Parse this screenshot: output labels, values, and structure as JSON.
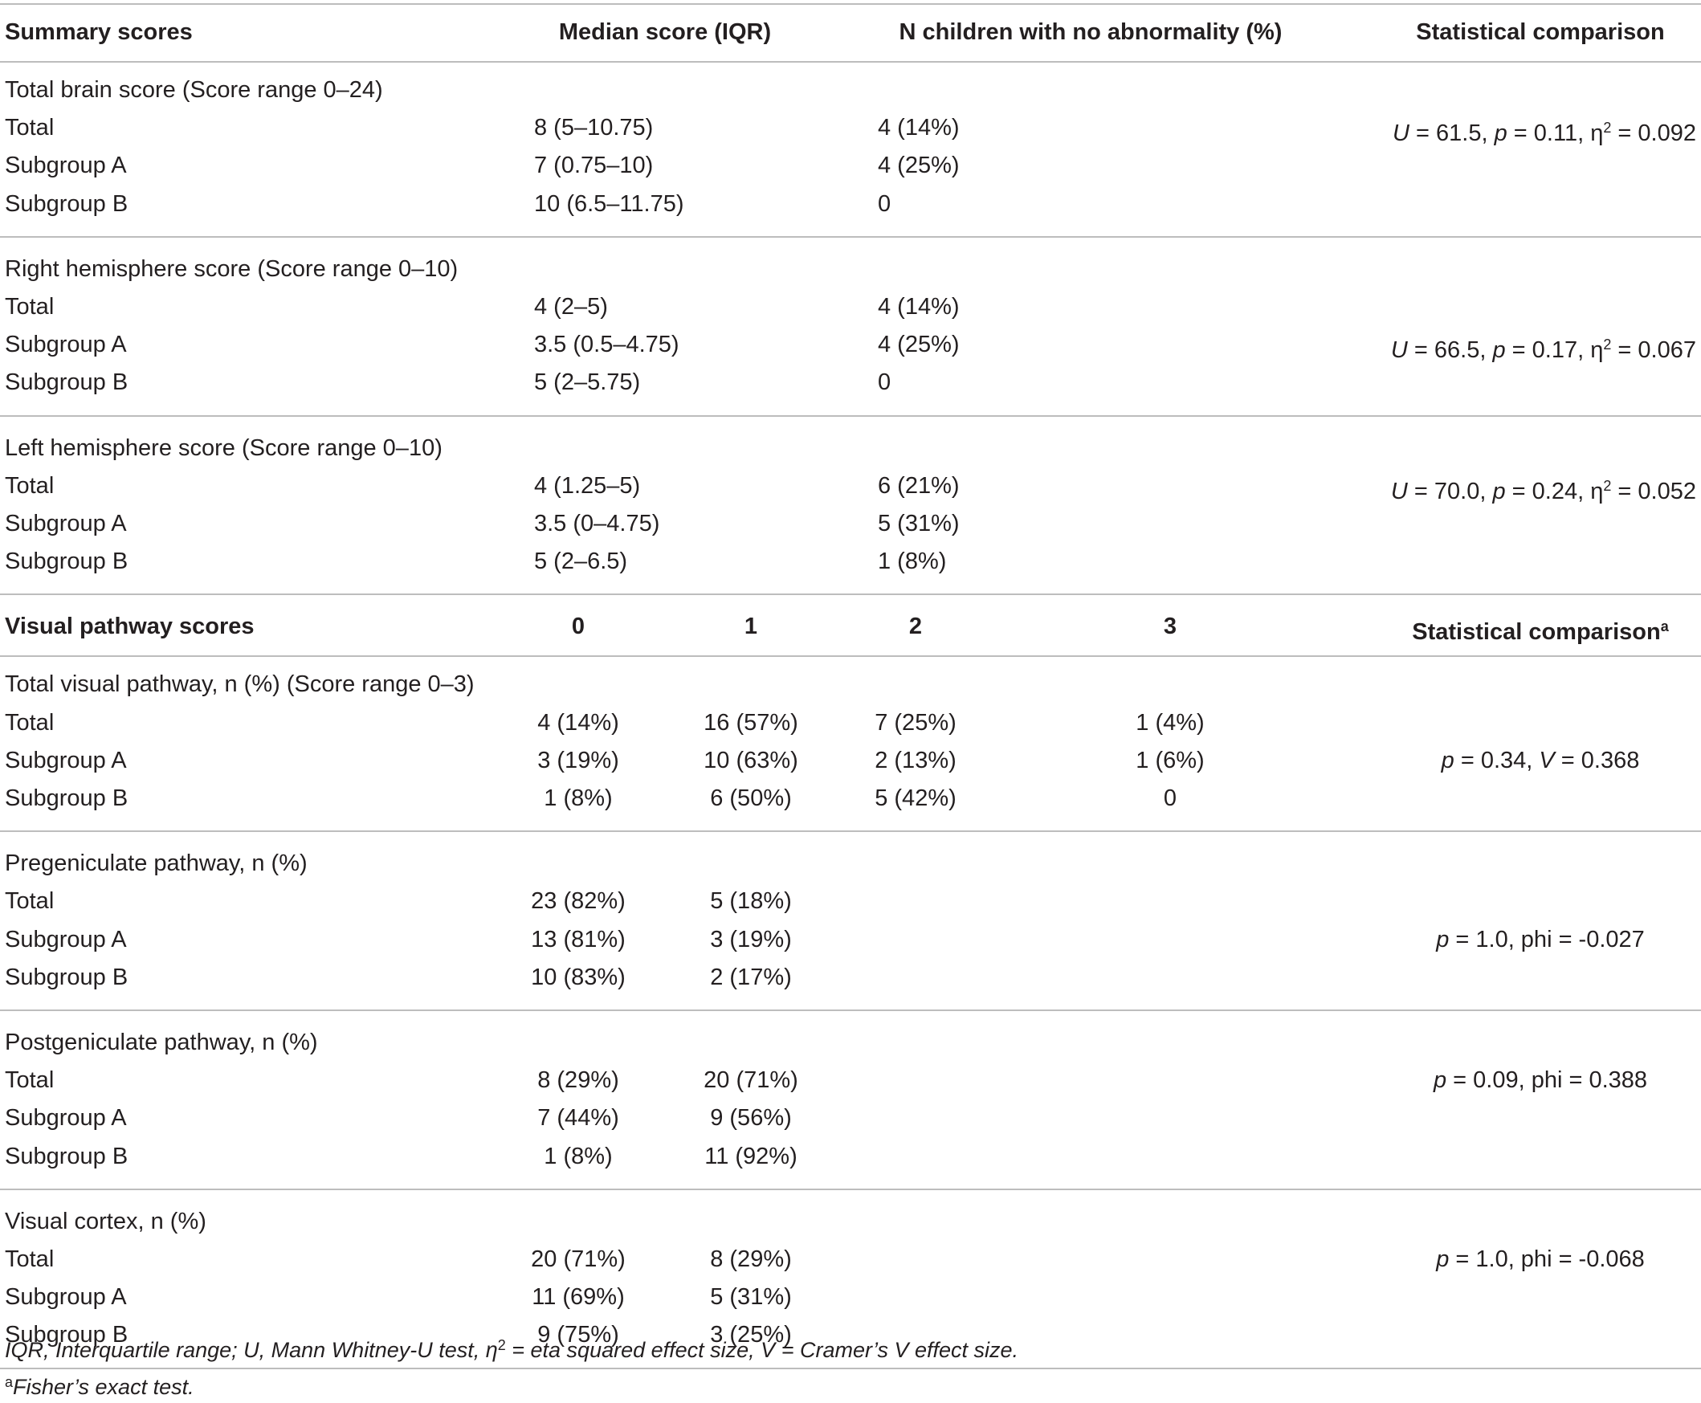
{
  "header1": {
    "col_summary": "Summary scores",
    "col_median": "Median score (IQR)",
    "col_no_abn": "N children with no abnormality (%)",
    "col_stat": "Statistical comparison"
  },
  "summary_groups": [
    {
      "title": "Total brain score (Score range 0–24)",
      "rows": [
        {
          "label": "Total",
          "median": "8 (5–10.75)",
          "no_abn": "4 (14%)"
        },
        {
          "label": "Subgroup A",
          "median": "7 (0.75–10)",
          "no_abn": "4 (25%)"
        },
        {
          "label": "Subgroup B",
          "median": "10 (6.5–11.75)",
          "no_abn": "0"
        }
      ],
      "stat": {
        "u": "U",
        "u_val": " = 61.5, ",
        "p": "p",
        "p_val": " = 0.11, ",
        "eta": "η",
        "eta_sup": "2",
        "eta_val": " = 0.092"
      }
    },
    {
      "title": "Right hemisphere score (Score range 0–10)",
      "rows": [
        {
          "label": "Total",
          "median": "4 (2–5)",
          "no_abn": "4 (14%)"
        },
        {
          "label": "Subgroup A",
          "median": "3.5 (0.5–4.75)",
          "no_abn": "4 (25%)"
        },
        {
          "label": "Subgroup B",
          "median": "5 (2–5.75)",
          "no_abn": "0"
        }
      ],
      "stat": {
        "u": "U",
        "u_val": " = 66.5, ",
        "p": "p",
        "p_val": " = 0.17, ",
        "eta": "η",
        "eta_sup": "2",
        "eta_val": " = 0.067"
      }
    },
    {
      "title": "Left hemisphere score (Score range 0–10)",
      "rows": [
        {
          "label": "Total",
          "median": "4 (1.25–5)",
          "no_abn": "6 (21%)"
        },
        {
          "label": "Subgroup A",
          "median": "3.5 (0–4.75)",
          "no_abn": "5 (31%)"
        },
        {
          "label": "Subgroup B",
          "median": "5 (2–6.5)",
          "no_abn": "1 (8%)"
        }
      ],
      "stat": {
        "u": "U",
        "u_val": " = 70.0, ",
        "p": "p",
        "p_val": " = 0.24, ",
        "eta": "η",
        "eta_sup": "2",
        "eta_val": " = 0.052"
      }
    }
  ],
  "header2": {
    "col_visual": "Visual pathway scores",
    "c0": "0",
    "c1": "1",
    "c2": "2",
    "c3": "3",
    "col_stat": "Statistical comparison",
    "col_stat_sup": "a"
  },
  "visual_groups": [
    {
      "title": "Total visual pathway, n (%) (Score range 0–3)",
      "rows": [
        {
          "label": "Total",
          "v0": "4 (14%)",
          "v1": "16 (57%)",
          "v2": "7 (25%)",
          "v3": "1 (4%)"
        },
        {
          "label": "Subgroup A",
          "v0": "3 (19%)",
          "v1": "10 (63%)",
          "v2": "2 (13%)",
          "v3": "1 (6%)"
        },
        {
          "label": "Subgroup B",
          "v0": "1 (8%)",
          "v1": "6 (50%)",
          "v2": "5 (42%)",
          "v3": "0"
        }
      ],
      "stat_row": 1,
      "stat": {
        "p": "p",
        "p_val": " = 0.34, ",
        "s": "V",
        "s_val": " = 0.368"
      }
    },
    {
      "title": "Pregeniculate pathway, n (%)",
      "rows": [
        {
          "label": "Total",
          "v0": "23 (82%)",
          "v1": "5 (18%)",
          "v2": "",
          "v3": ""
        },
        {
          "label": "Subgroup A",
          "v0": "13 (81%)",
          "v1": "3 (19%)",
          "v2": "",
          "v3": ""
        },
        {
          "label": "Subgroup B",
          "v0": "10 (83%)",
          "v1": "2 (17%)",
          "v2": "",
          "v3": ""
        }
      ],
      "stat_row": 1,
      "stat": {
        "p": "p",
        "p_val": " = 1.0, phi = -0.027",
        "s": "",
        "s_val": ""
      }
    },
    {
      "title": "Postgeniculate pathway, n (%)",
      "rows": [
        {
          "label": "Total",
          "v0": "8 (29%)",
          "v1": "20 (71%)",
          "v2": "",
          "v3": ""
        },
        {
          "label": "Subgroup A",
          "v0": "7 (44%)",
          "v1": "9 (56%)",
          "v2": "",
          "v3": ""
        },
        {
          "label": "Subgroup B",
          "v0": "1 (8%)",
          "v1": "11 (92%)",
          "v2": "",
          "v3": ""
        }
      ],
      "stat_row": 0,
      "stat": {
        "p": "p",
        "p_val": " = 0.09, phi = 0.388",
        "s": "",
        "s_val": ""
      }
    },
    {
      "title": "Visual cortex, n (%)",
      "rows": [
        {
          "label": "Total",
          "v0": "20 (71%)",
          "v1": "8 (29%)",
          "v2": "",
          "v3": ""
        },
        {
          "label": "Subgroup A",
          "v0": "11 (69%)",
          "v1": "5 (31%)",
          "v2": "",
          "v3": ""
        },
        {
          "label": "Subgroup B",
          "v0": "9 (75%)",
          "v1": "3 (25%)",
          "v2": "",
          "v3": ""
        }
      ],
      "stat_row": 0,
      "stat": {
        "p": "p",
        "p_val": " = 1.0, phi = -0.068",
        "s": "",
        "s_val": ""
      }
    }
  ],
  "footnotes": {
    "line1_a": "IQR, Interquartile range; U, Mann Whitney-U test, η",
    "line1_sup": "2",
    "line1_b": " = eta squared effect size, V = Cramer’s V effect size.",
    "line2_sup": "a",
    "line2": "Fisher’s exact test."
  }
}
